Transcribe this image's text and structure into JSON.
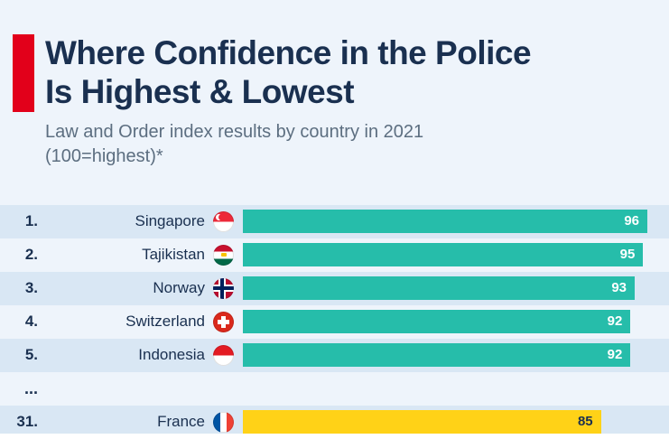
{
  "header": {
    "title_line1": "Where Confidence in the Police",
    "title_line2": "Is Highest & Lowest",
    "subtitle_line1": "Law and Order index results by country in 2021",
    "subtitle_line2": "(100=highest)*"
  },
  "colors": {
    "accent_red": "#e2001a",
    "bar_teal": "#26bdaa",
    "bar_yellow": "#ffd217",
    "navy": "#1a3050",
    "value_on_teal": "#ffffff",
    "value_on_yellow": "#1a3050"
  },
  "chart_data": {
    "type": "bar",
    "orientation": "horizontal",
    "title": "Where Confidence in the Police Is Highest & Lowest",
    "subtitle": "Law and Order index results by country in 2021 (100=highest)*",
    "scale_max": 96,
    "xlim": [
      0,
      96
    ],
    "ellipsis": "...",
    "rows": [
      {
        "rank": "1.",
        "country": "Singapore",
        "flag": "singapore-flag-icon",
        "value": 96,
        "color": "teal"
      },
      {
        "rank": "2.",
        "country": "Tajikistan",
        "flag": "tajikistan-flag-icon",
        "value": 95,
        "color": "teal"
      },
      {
        "rank": "3.",
        "country": "Norway",
        "flag": "norway-flag-icon",
        "value": 93,
        "color": "teal"
      },
      {
        "rank": "4.",
        "country": "Switzerland",
        "flag": "switzerland-flag-icon",
        "value": 92,
        "color": "teal"
      },
      {
        "rank": "5.",
        "country": "Indonesia",
        "flag": "indonesia-flag-icon",
        "value": 92,
        "color": "teal"
      },
      {
        "rank": "31.",
        "country": "France",
        "flag": "france-flag-icon",
        "value": 85,
        "color": "yellow"
      }
    ]
  }
}
